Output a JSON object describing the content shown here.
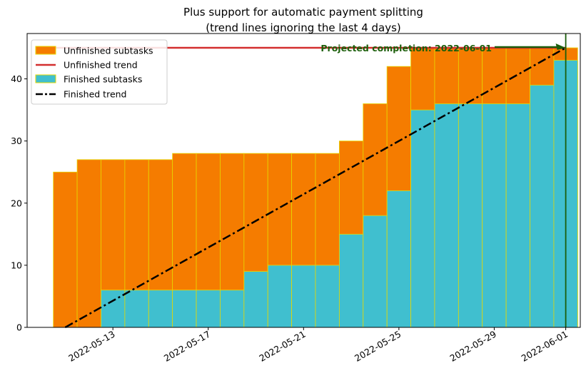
{
  "chart_data": {
    "type": "bar",
    "title": "Plus support for automatic payment splitting",
    "subtitle": "(trend lines ignoring the last 4 days)",
    "xlabel": "",
    "ylabel": "",
    "dates": [
      "2022-05-11",
      "2022-05-12",
      "2022-05-13",
      "2022-05-14",
      "2022-05-15",
      "2022-05-16",
      "2022-05-17",
      "2022-05-18",
      "2022-05-19",
      "2022-05-20",
      "2022-05-21",
      "2022-05-22",
      "2022-05-23",
      "2022-05-24",
      "2022-05-25",
      "2022-05-26",
      "2022-05-27",
      "2022-05-28",
      "2022-05-29",
      "2022-05-30",
      "2022-05-31",
      "2022-06-01"
    ],
    "series": [
      {
        "name": "Unfinished subtasks",
        "values": [
          25,
          27,
          27,
          27,
          27,
          28,
          28,
          28,
          28,
          28,
          28,
          28,
          30,
          36,
          42,
          45,
          45,
          45,
          45,
          45,
          45,
          45
        ],
        "color": "#f57c00",
        "edge_color": "#e6d800"
      },
      {
        "name": "Finished subtasks",
        "values": [
          0,
          0,
          6,
          6,
          6,
          6,
          6,
          6,
          9,
          10,
          10,
          10,
          15,
          18,
          22,
          35,
          36,
          36,
          36,
          36,
          39,
          43
        ],
        "color": "#40bfcf",
        "edge_color": "#e6d800"
      }
    ],
    "trend_lines": [
      {
        "name": "Unfinished trend",
        "color": "#d32f2f",
        "style": "solid",
        "points": [
          [
            "2022-05-11",
            45
          ],
          [
            "2022-06-01",
            45
          ]
        ]
      },
      {
        "name": "Finished trend",
        "color": "#000000",
        "style": "dashdot",
        "points": [
          [
            "2022-05-11",
            0
          ],
          [
            "2022-06-01",
            45
          ]
        ]
      }
    ],
    "projected_completion": {
      "label": "Projected completion: 2022-06-01",
      "date": "2022-06-01",
      "value": 45,
      "color": "#1b5e0a"
    },
    "x_ticks": [
      "2022-05-13",
      "2022-05-17",
      "2022-05-21",
      "2022-05-25",
      "2022-05-29",
      "2022-06-01"
    ],
    "y_ticks": [
      0,
      10,
      20,
      30,
      40
    ],
    "ylim": [
      0,
      47.3
    ],
    "xlim": [
      "2022-05-10",
      "2022-06-02"
    ],
    "legend_placement": "upper-left",
    "legend": [
      "Unfinished subtasks",
      "Unfinished trend",
      "Finished subtasks",
      "Finished trend"
    ],
    "grid": false
  }
}
